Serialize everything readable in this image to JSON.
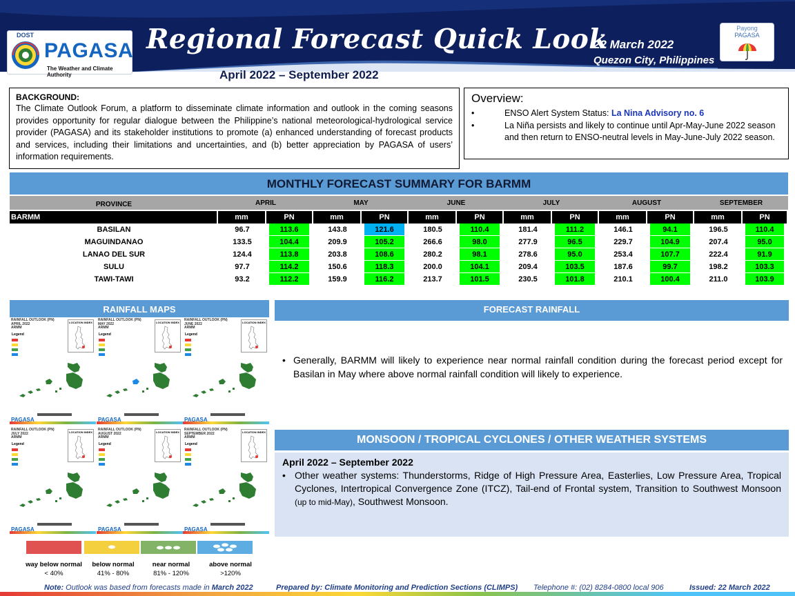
{
  "header": {
    "dost": "DOST",
    "logo_name": "PAGASA",
    "tagline": "The Weather and Climate Authority",
    "title": "Regional Forecast Quick Look",
    "subtitle": "April 2022 – September 2022",
    "date": "22 March 2022",
    "place": "Quezon City, Philippines",
    "payong_line1": "Payong",
    "payong_line2": "PAGASA",
    "colors": {
      "navy": "#0d1f5c",
      "accent": "#5b9bd5"
    }
  },
  "background": {
    "heading": "BACKGROUND:",
    "text": "The Climate Outlook Forum, a platform to disseminate climate information and outlook in the coming seasons provides opportunity for regular dialogue between the Philippine’s national meteorological-hydrological service provider (PAGASA) and its stakeholder institutions to promote (a) enhanced understanding of forecast products and services, including their limitations and uncertainties, and (b) better appreciation by PAGASA of users’ information requirements."
  },
  "overview": {
    "heading": "Overview:",
    "enso_label": "ENSO Alert System Status:",
    "enso_status": "La Nina Advisory no. 6",
    "item2": "La Niña persists and likely to continue until Apr-May-June 2022 season and then return to ENSO-neutral levels in May-June-July 2022 season."
  },
  "summary": {
    "heading": "MONTHLY FORECAST SUMMARY FOR BARMM",
    "province_header": "PROVINCE",
    "region": "BARMM",
    "unit_mm": "mm",
    "unit_pn": "PN",
    "months": [
      "APRIL",
      "MAY",
      "JUNE",
      "JULY",
      "AUGUST",
      "SEPTEMBER"
    ],
    "rows": [
      {
        "province": "BASILAN",
        "vals": [
          [
            "96.7",
            "113.6"
          ],
          [
            "143.8",
            "121.6"
          ],
          [
            "180.5",
            "110.4"
          ],
          [
            "181.4",
            "111.2"
          ],
          [
            "146.1",
            "94.1"
          ],
          [
            "196.5",
            "110.4"
          ]
        ]
      },
      {
        "province": "MAGUINDANAO",
        "vals": [
          [
            "133.5",
            "104.4"
          ],
          [
            "209.9",
            "105.2"
          ],
          [
            "266.6",
            "98.0"
          ],
          [
            "277.9",
            "96.5"
          ],
          [
            "229.7",
            "104.9"
          ],
          [
            "207.4",
            "95.0"
          ]
        ]
      },
      {
        "province": "LANAO DEL SUR",
        "vals": [
          [
            "124.4",
            "113.8"
          ],
          [
            "203.8",
            "108.6"
          ],
          [
            "280.2",
            "98.1"
          ],
          [
            "278.6",
            "95.0"
          ],
          [
            "253.4",
            "107.7"
          ],
          [
            "222.4",
            "91.9"
          ]
        ]
      },
      {
        "province": "SULU",
        "vals": [
          [
            "97.7",
            "114.2"
          ],
          [
            "150.6",
            "118.3"
          ],
          [
            "200.0",
            "104.1"
          ],
          [
            "209.4",
            "103.5"
          ],
          [
            "187.6",
            "99.7"
          ],
          [
            "198.2",
            "103.3"
          ]
        ]
      },
      {
        "province": "TAWI-TAWI",
        "vals": [
          [
            "93.2",
            "112.2"
          ],
          [
            "159.9",
            "116.2"
          ],
          [
            "213.7",
            "101.5"
          ],
          [
            "230.5",
            "101.8"
          ],
          [
            "210.1",
            "100.4"
          ],
          [
            "211.0",
            "103.9"
          ]
        ]
      }
    ],
    "colors": {
      "near_normal": "#00ff00",
      "above_normal": "#00b0f0",
      "header_gray": "#a6a6a6"
    }
  },
  "rainfall_maps": {
    "heading": "RAINFALL MAPS",
    "maps": [
      {
        "title": "RAINFALL OUTLOOK (PN)",
        "month": "APRIL 2022",
        "region": "ARMM"
      },
      {
        "title": "RAINFALL OUTLOOK (PN)",
        "month": "MAY 2022",
        "region": "ARMM"
      },
      {
        "title": "RAINFALL OUTLOOK (PN)",
        "month": "JUNE 2022",
        "region": "ARMM"
      },
      {
        "title": "RAINFALL OUTLOOK (PN)",
        "month": "JULY 2022",
        "region": "ARMM"
      },
      {
        "title": "RAINFALL OUTLOOK (PN)",
        "month": "AUGUST 2022",
        "region": "ARMM"
      },
      {
        "title": "RAINFALL OUTLOOK (PN)",
        "month": "SEPTEMBER 2022",
        "region": "ARMM"
      }
    ],
    "map_legend_label": "Legend",
    "inset_label": "LOCATION INDEX",
    "mini_logo": "PAGASA",
    "legend": [
      {
        "label": "way below normal",
        "range": "< 40%",
        "color": "#e05252"
      },
      {
        "label": "below normal",
        "range": "41% - 80%",
        "color": "#f4d03f"
      },
      {
        "label": "near normal",
        "range": "81% - 120%",
        "color": "#82b366"
      },
      {
        "label": "above normal",
        "range": ">120%",
        "color": "#5dade2"
      }
    ]
  },
  "forecast_rainfall": {
    "heading": "FORECAST RAINFALL",
    "bullet": "•",
    "text": "Generally, BARMM will likely to experience near normal rainfall condition during the forecast period except for Basilan in May where above normal rainfall condition will likely to experience."
  },
  "monsoon": {
    "heading": "MONSOON / TROPICAL CYCLONES / OTHER WEATHER SYSTEMS",
    "period": "April 2022 – September 2022",
    "text_main": "Other weather systems: Thunderstorms,  Ridge of High Pressure Area,  Easterlies, Low Pressure Area, Tropical Cyclones, Intertropical Convergence Zone (ITCZ), Tail-end of Frontal system, Transition to Southwest Monsoon ",
    "text_small": "(up to mid-May)",
    "text_end": ", Southwest Monsoon."
  },
  "footer": {
    "note_label": "Note:",
    "note_text": "Outlook was based from forecasts made in",
    "note_month": "March 2022",
    "prepared": "Prepared by: Climate Monitoring and Prediction Sections (CLIMPS)",
    "telephone": "Telephone #: (02) 8284-0800 local 906",
    "issued": "Issued: 22 March 2022"
  }
}
